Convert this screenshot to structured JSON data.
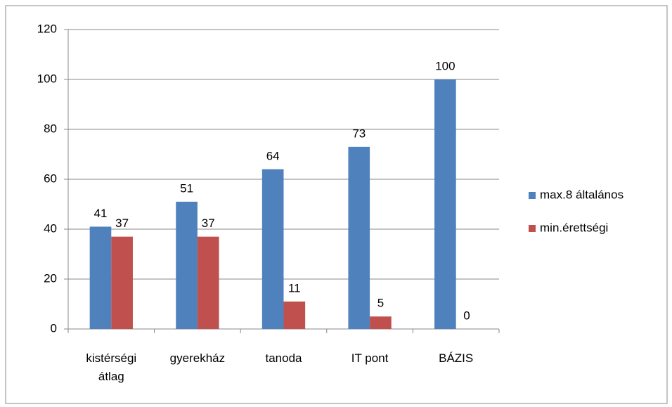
{
  "chart_data": {
    "type": "bar",
    "categories": [
      "kistérségi átlag",
      "gyerekház",
      "tanoda",
      "IT pont",
      "BÁZIS"
    ],
    "series": [
      {
        "name": "max.8 általános",
        "color": "#4f81bd",
        "values": [
          41,
          51,
          64,
          73,
          100
        ]
      },
      {
        "name": "min.érettségi",
        "color": "#c0504d",
        "values": [
          37,
          37,
          11,
          5,
          0
        ]
      }
    ],
    "ylim": [
      0,
      120
    ],
    "yticks": [
      0,
      20,
      40,
      60,
      80,
      100,
      120
    ],
    "grid": true,
    "legend": "right"
  }
}
